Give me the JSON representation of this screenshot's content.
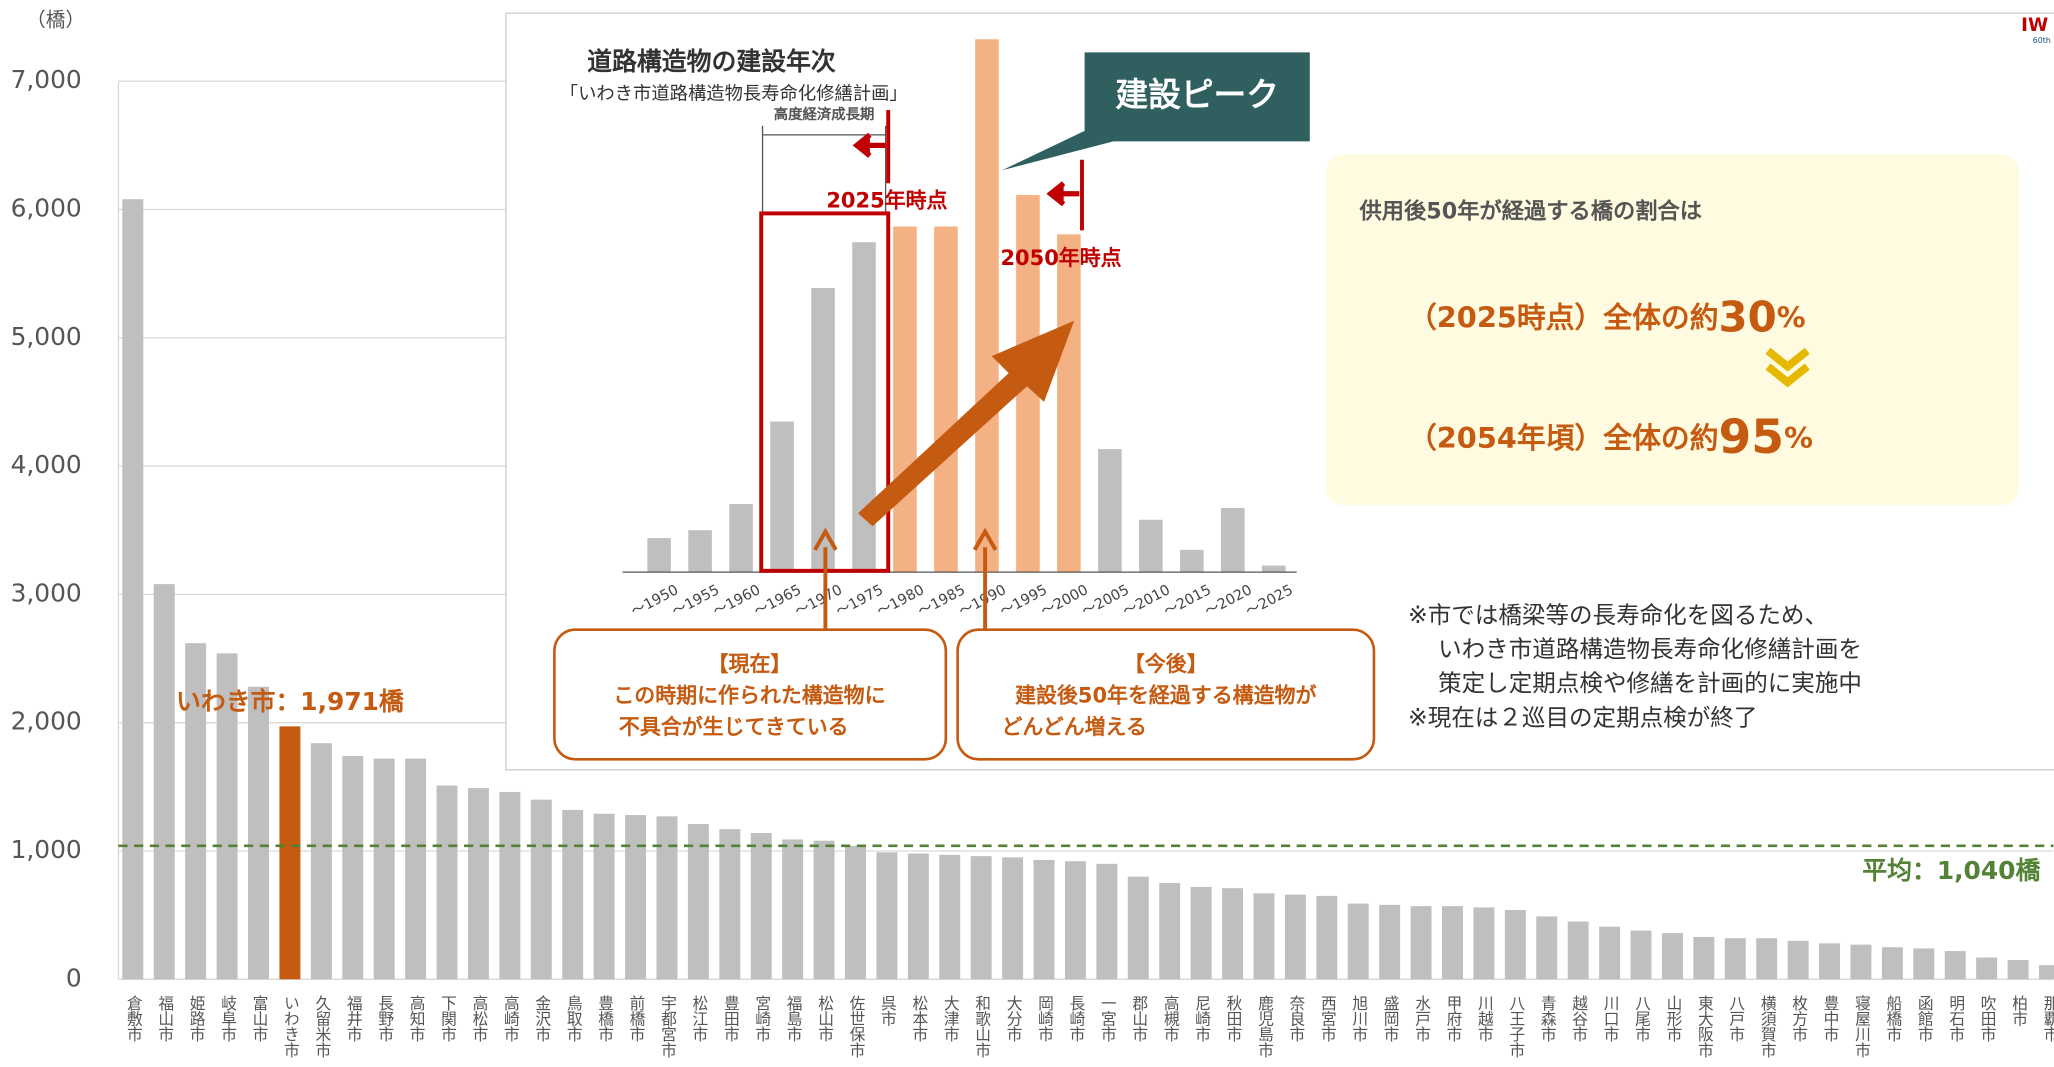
{
  "chart_data": [
    {
      "type": "bar",
      "y_unit_label": "（橋）",
      "categories": [
        "倉敷市",
        "福山市",
        "姫路市",
        "岐阜市",
        "富山市",
        "いわき市",
        "久留米市",
        "福井市",
        "長野市",
        "高知市",
        "下関市",
        "高松市",
        "高崎市",
        "金沢市",
        "鳥取市",
        "豊橋市",
        "前橋市",
        "宇都宮市",
        "松江市",
        "豊田市",
        "宮崎市",
        "福島市",
        "松山市",
        "佐世保市",
        "呉市",
        "松本市",
        "大津市",
        "和歌山市",
        "大分市",
        "岡崎市",
        "長崎市",
        "一宮市",
        "郡山市",
        "高槻市",
        "尼崎市",
        "秋田市",
        "鹿児島市",
        "奈良市",
        "西宮市",
        "旭川市",
        "盛岡市",
        "水戸市",
        "甲府市",
        "川越市",
        "八王子市",
        "青森市",
        "越谷市",
        "川口市",
        "八尾市",
        "山形市",
        "東大阪市",
        "八戸市",
        "横須賀市",
        "枚方市",
        "豊中市",
        "寝屋川市",
        "船橋市",
        "函館市",
        "明石市",
        "吹田市",
        "柏市",
        "那覇市"
      ],
      "values": [
        6080,
        3080,
        2620,
        2540,
        2280,
        1971,
        1840,
        1740,
        1720,
        1720,
        1510,
        1490,
        1460,
        1400,
        1320,
        1290,
        1280,
        1270,
        1210,
        1170,
        1140,
        1090,
        1080,
        1040,
        990,
        980,
        970,
        960,
        950,
        930,
        920,
        900,
        800,
        750,
        720,
        710,
        670,
        660,
        650,
        590,
        580,
        570,
        570,
        560,
        540,
        490,
        450,
        410,
        380,
        360,
        330,
        320,
        320,
        300,
        280,
        270,
        250,
        240,
        220,
        170,
        150,
        110
      ],
      "color": "#bfbfbf",
      "highlight": {
        "category": 5,
        "color": "#c55a11",
        "label": "いわき市：1,971橋"
      },
      "average": {
        "value": 1040,
        "label": "平均：1,040橋",
        "color": "#548235"
      },
      "ylim": [
        0,
        7000
      ],
      "yticks": [
        0,
        {
          "value": 1000,
          "label": "1,000"
        },
        {
          "value": 2000,
          "label": "2,000"
        },
        {
          "value": 3000,
          "label": "3,000"
        },
        {
          "value": 4000,
          "label": "4,000"
        },
        {
          "value": 5000,
          "label": "5,000"
        },
        {
          "value": 6000,
          "label": "6,000"
        },
        {
          "value": 7000,
          "label": "7,000"
        }
      ],
      "grid": true
    },
    {
      "type": "bar",
      "title": "道路構造物の建設年次",
      "subtitle": "「いわき市道路構造物長寿命化修繕計画」",
      "categories": [
        "～1950",
        "～1955",
        "～1960",
        "～1965",
        "～1970",
        "～1975",
        "～1980",
        "～1985",
        "～1990",
        "～1995",
        "～2000",
        "～2005",
        "～2010",
        "～2015",
        "～2020",
        "～2025"
      ],
      "values": [
        26,
        32,
        52,
        115,
        217,
        252,
        264,
        264,
        407,
        288,
        258,
        94,
        40,
        17,
        49,
        5
      ],
      "colors": [
        "#bfbfbf",
        "#bfbfbf",
        "#bfbfbf",
        "#bfbfbf",
        "#bfbfbf",
        "#bfbfbf",
        "#f4b183",
        "#f4b183",
        "#f4b183",
        "#f4b183",
        "#f4b183",
        "#bfbfbf",
        "#bfbfbf",
        "#bfbfbf",
        "#bfbfbf",
        "#bfbfbf"
      ],
      "annotations": {
        "period": "高度経済成長期",
        "at2025": "2025年時点",
        "at2050": "2050年時点",
        "peak": "建設ピーク",
        "now": [
          "【現在】",
          "この時期に作られた構造物に",
          "不具合が生じてきている"
        ],
        "future": [
          "【今後】",
          "建設後50年を経過する構造物が",
          "どんどん増える"
        ]
      }
    }
  ],
  "summary": {
    "heading": "供用後50年が経過する橋の割合は",
    "line1": {
      "prefix": "（2025時点）全体の約",
      "number": "30",
      "unit": "%"
    },
    "line2": {
      "prefix": "（2054年頃）全体の約",
      "number": "95",
      "unit": "%"
    }
  },
  "notes": [
    "※市では橋梁等の長寿命化を図るため、",
    "いわき市道路構造物長寿命化修繕計画を",
    "策定し定期点検や修繕を計画的に実施中",
    "※現在は２巡目の定期点検が終了"
  ],
  "logo": {
    "text": "IW",
    "sub": "60th"
  }
}
